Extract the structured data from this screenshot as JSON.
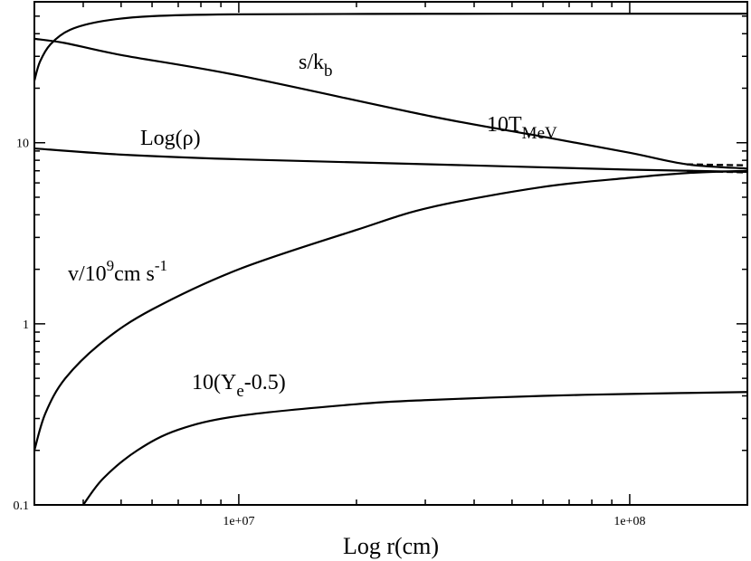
{
  "chart_data": {
    "type": "line",
    "xscale": "log",
    "yscale": "log",
    "xlim": [
      3000000,
      200000000
    ],
    "ylim": [
      0.1,
      60
    ],
    "xlabel": "Log r(cm)",
    "ylabel": "",
    "grid": false,
    "legend": "none",
    "xticks": [
      {
        "value": 10000000,
        "label": "1e+07"
      },
      {
        "value": 100000000,
        "label": "1e+08"
      }
    ],
    "yticks": [
      {
        "value": 0.1,
        "label": "0.1"
      },
      {
        "value": 1,
        "label": "1"
      },
      {
        "value": 10,
        "label": "10"
      }
    ],
    "series": [
      {
        "name": "s/k_b",
        "label": {
          "base": "s/k",
          "sub": "b"
        },
        "points": [
          [
            3000000,
            22
          ],
          [
            3100000,
            28
          ],
          [
            3300000,
            35
          ],
          [
            3700000,
            42
          ],
          [
            4500000,
            47
          ],
          [
            6000000,
            50
          ],
          [
            10000000,
            51.2
          ],
          [
            31000000,
            51.5
          ],
          [
            100000000,
            51.6
          ],
          [
            200000000,
            51.6
          ]
        ]
      },
      {
        "name": "10T_MeV",
        "label": {
          "base": "10T",
          "sub": "MeV"
        },
        "points": [
          [
            3000000,
            37.5
          ],
          [
            3600000,
            35.5
          ],
          [
            5000000,
            30.5
          ],
          [
            10000000,
            23.5
          ],
          [
            31000000,
            14
          ],
          [
            60000000,
            10.8
          ],
          [
            100000000,
            8.8
          ],
          [
            140000000,
            7.6
          ],
          [
            200000000,
            7.2
          ]
        ],
        "dashed_tail": [
          [
            140000000,
            7.6
          ],
          [
            200000000,
            7.5
          ]
        ]
      },
      {
        "name": "Log(ρ)",
        "label": {
          "base": "Log(ρ)"
        },
        "points": [
          [
            3000000,
            9.3
          ],
          [
            5000000,
            8.6
          ],
          [
            10000000,
            8.1
          ],
          [
            31000000,
            7.6
          ],
          [
            100000000,
            7.1
          ],
          [
            200000000,
            6.9
          ]
        ],
        "dashed_tail": [
          [
            140000000,
            7.0
          ],
          [
            200000000,
            6.85
          ]
        ]
      },
      {
        "name": "v/10^9 cm s^-1",
        "label": {
          "base": "v/10",
          "sup": "9",
          "mid": "cm s",
          "sup2": "-1"
        },
        "points": [
          [
            3000000,
            0.2
          ],
          [
            3200000,
            0.32
          ],
          [
            3600000,
            0.5
          ],
          [
            4500000,
            0.8
          ],
          [
            6000000,
            1.2
          ],
          [
            10000000,
            2.0
          ],
          [
            20000000,
            3.3
          ],
          [
            31000000,
            4.4
          ],
          [
            60000000,
            5.7
          ],
          [
            100000000,
            6.4
          ],
          [
            140000000,
            6.8
          ],
          [
            200000000,
            7.0
          ]
        ]
      },
      {
        "name": "10(Y_e-0.5)",
        "label": {
          "base": "10(Y",
          "sub": "e",
          "tail": "-0.5)"
        },
        "points": [
          [
            4000000,
            0.1
          ],
          [
            4500000,
            0.14
          ],
          [
            5500000,
            0.2
          ],
          [
            7000000,
            0.26
          ],
          [
            10000000,
            0.31
          ],
          [
            20000000,
            0.36
          ],
          [
            31000000,
            0.38
          ],
          [
            60000000,
            0.4
          ],
          [
            100000000,
            0.41
          ],
          [
            200000000,
            0.42
          ]
        ]
      }
    ]
  }
}
